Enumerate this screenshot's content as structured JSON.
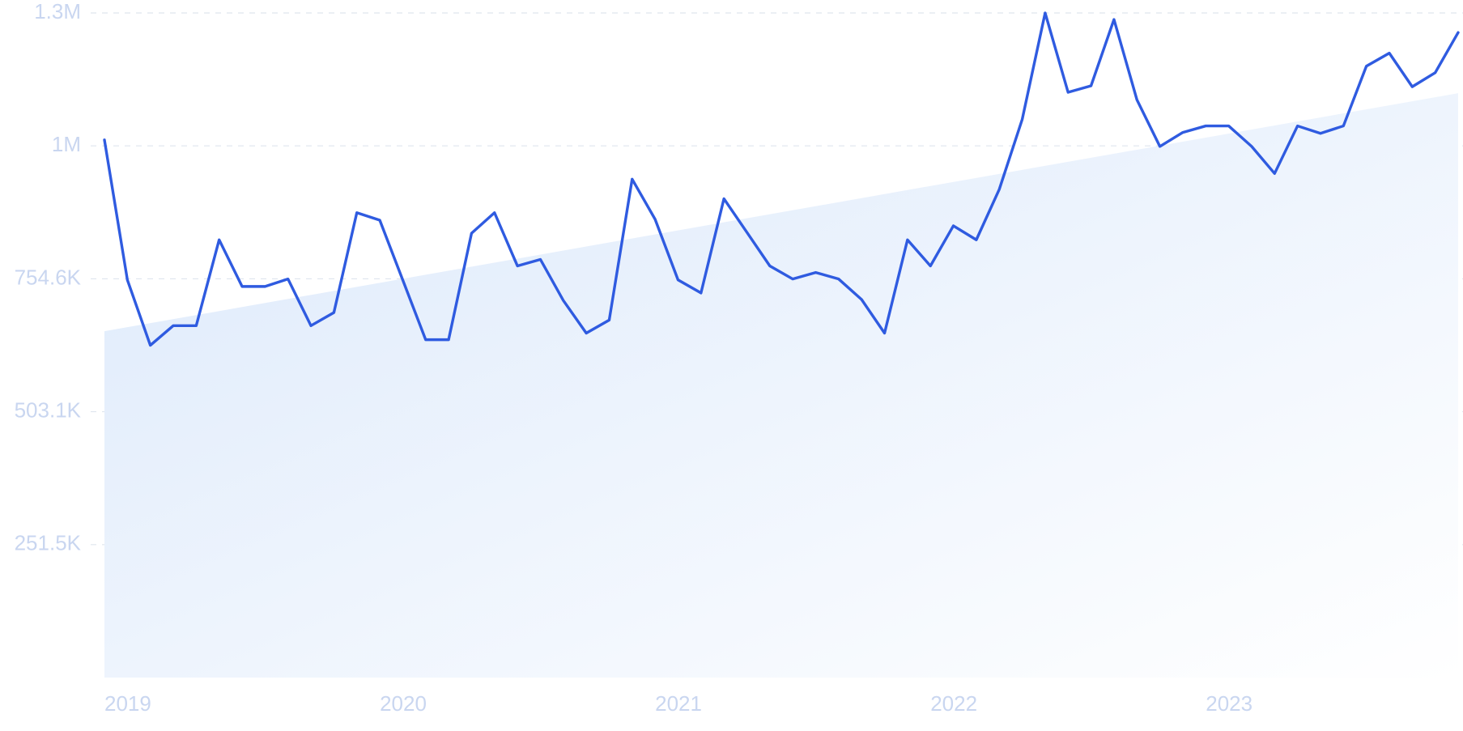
{
  "chart_data": {
    "type": "line",
    "categories": [
      "2019",
      null,
      null,
      null,
      null,
      null,
      null,
      null,
      null,
      null,
      null,
      null,
      "2020",
      null,
      null,
      null,
      null,
      null,
      null,
      null,
      null,
      null,
      null,
      null,
      "2021",
      null,
      null,
      null,
      null,
      null,
      null,
      null,
      null,
      null,
      null,
      null,
      "2022",
      null,
      null,
      null,
      null,
      null,
      null,
      null,
      null,
      null,
      null,
      null,
      "2023",
      null,
      null,
      null,
      null,
      null,
      null,
      null,
      null,
      null,
      null,
      null
    ],
    "values": [
      1017400,
      752500,
      628800,
      665900,
      665900,
      828400,
      740100,
      740100,
      754200,
      665900,
      690700,
      879700,
      865500,
      752500,
      639400,
      639400,
      840800,
      879700,
      779000,
      791300,
      713600,
      651800,
      676500,
      943200,
      867300,
      752500,
      727800,
      906100,
      842600,
      779000,
      754200,
      766600,
      754200,
      715400,
      651800,
      828400,
      779000,
      854900,
      828400,
      923800,
      1056300,
      1257700,
      1107500,
      1119900,
      1245300,
      1093400,
      1005100,
      1031600,
      1043900,
      1043900,
      1005100,
      953900,
      1043900,
      1029800,
      1043900,
      1157000,
      1181700,
      1118100,
      1144600,
      1220600
    ],
    "color": "#2f5be0",
    "trend_values": [
      655400,
      1105800
    ],
    "trend_color": "#dce9fb",
    "ylim": [
      0,
      1257700
    ],
    "yticks": [
      {
        "value": 251500,
        "label": "251.5K"
      },
      {
        "value": 503100,
        "label": "503.1K"
      },
      {
        "value": 754600,
        "label": "754.6K"
      },
      {
        "value": 1006200,
        "label": "1M"
      },
      {
        "value": 1257700,
        "label": "1.3M"
      }
    ],
    "grid": true
  }
}
